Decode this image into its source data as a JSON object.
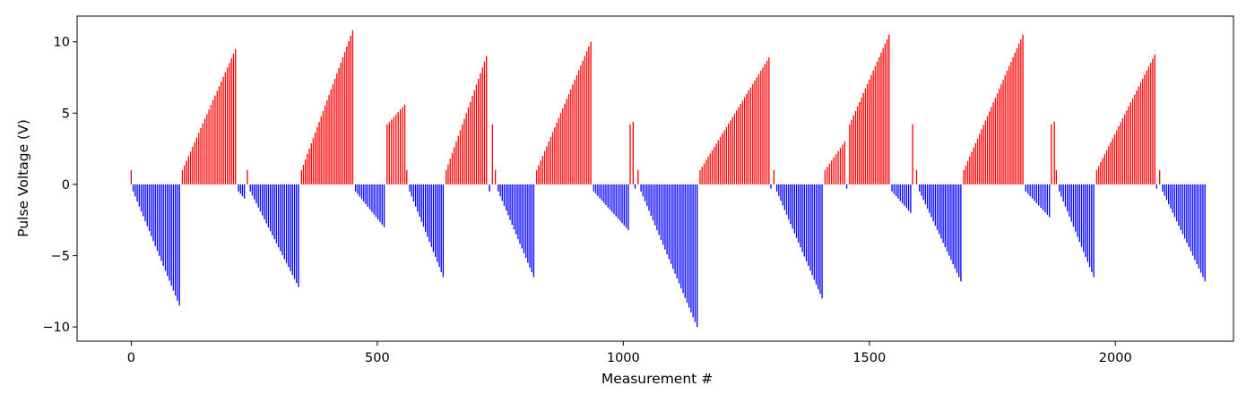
{
  "chart_data": {
    "type": "bar",
    "xlabel": "Measurement #",
    "ylabel": "Pulse Voltage (V)",
    "xlim": [
      -110,
      2240
    ],
    "ylim": [
      -11.0,
      11.8
    ],
    "xticks": [
      0,
      500,
      1000,
      1500,
      2000
    ],
    "yticks": [
      -10,
      -5,
      0,
      5,
      10
    ],
    "ytick_labels": [
      "−10",
      "−5",
      "0",
      "5",
      "10"
    ],
    "grid": false,
    "positive_color": "#ff0000",
    "negative_color": "#0000ff",
    "segments": [
      {
        "x_start": 0,
        "x_end": 3,
        "v_start": 1.0,
        "v_end": 1.0,
        "count": 1
      },
      {
        "x_start": 4,
        "x_end": 98,
        "v_start": -0.5,
        "v_end": -8.5,
        "count": 24
      },
      {
        "x_start": 104,
        "x_end": 212,
        "v_start": 1.0,
        "v_end": 9.5,
        "count": 27
      },
      {
        "x_start": 218,
        "x_end": 230,
        "v_start": -0.5,
        "v_end": -1.0,
        "count": 4
      },
      {
        "x_start": 236,
        "x_end": 238,
        "v_start": 1.0,
        "v_end": 1.0,
        "count": 1
      },
      {
        "x_start": 242,
        "x_end": 340,
        "v_start": -0.5,
        "v_end": -7.2,
        "count": 25
      },
      {
        "x_start": 346,
        "x_end": 450,
        "v_start": 1.0,
        "v_end": 10.8,
        "count": 27
      },
      {
        "x_start": 456,
        "x_end": 514,
        "v_start": -0.5,
        "v_end": -3.0,
        "count": 15
      },
      {
        "x_start": 520,
        "x_end": 556,
        "v_start": 4.2,
        "v_end": 5.6,
        "count": 9
      },
      {
        "x_start": 560,
        "x_end": 562,
        "v_start": 1.0,
        "v_end": 1.0,
        "count": 1
      },
      {
        "x_start": 566,
        "x_end": 634,
        "v_start": -0.5,
        "v_end": -6.5,
        "count": 18
      },
      {
        "x_start": 640,
        "x_end": 722,
        "v_start": 1.0,
        "v_end": 9.0,
        "count": 21
      },
      {
        "x_start": 728,
        "x_end": 730,
        "v_start": -0.5,
        "v_end": -0.5,
        "count": 1
      },
      {
        "x_start": 734,
        "x_end": 736,
        "v_start": 4.2,
        "v_end": 4.2,
        "count": 1
      },
      {
        "x_start": 740,
        "x_end": 742,
        "v_start": 1.0,
        "v_end": 1.0,
        "count": 1
      },
      {
        "x_start": 746,
        "x_end": 818,
        "v_start": -0.5,
        "v_end": -6.5,
        "count": 19
      },
      {
        "x_start": 824,
        "x_end": 934,
        "v_start": 1.0,
        "v_end": 10.0,
        "count": 28
      },
      {
        "x_start": 940,
        "x_end": 1010,
        "v_start": -0.5,
        "v_end": -3.2,
        "count": 18
      },
      {
        "x_start": 1014,
        "x_end": 1020,
        "v_start": 4.2,
        "v_end": 4.4,
        "count": 2
      },
      {
        "x_start": 1024,
        "x_end": 1026,
        "v_start": -0.3,
        "v_end": -0.3,
        "count": 1
      },
      {
        "x_start": 1030,
        "x_end": 1032,
        "v_start": 1.0,
        "v_end": 1.0,
        "count": 1
      },
      {
        "x_start": 1036,
        "x_end": 1150,
        "v_start": -0.5,
        "v_end": -10.0,
        "count": 29
      },
      {
        "x_start": 1156,
        "x_end": 1296,
        "v_start": 1.0,
        "v_end": 8.9,
        "count": 35
      },
      {
        "x_start": 1300,
        "x_end": 1302,
        "v_start": -0.3,
        "v_end": -0.3,
        "count": 1
      },
      {
        "x_start": 1306,
        "x_end": 1308,
        "v_start": 1.0,
        "v_end": 1.0,
        "count": 1
      },
      {
        "x_start": 1312,
        "x_end": 1404,
        "v_start": -0.5,
        "v_end": -8.0,
        "count": 24
      },
      {
        "x_start": 1410,
        "x_end": 1450,
        "v_start": 1.0,
        "v_end": 3.0,
        "count": 10
      },
      {
        "x_start": 1454,
        "x_end": 1456,
        "v_start": -0.3,
        "v_end": -0.3,
        "count": 1
      },
      {
        "x_start": 1460,
        "x_end": 1540,
        "v_start": 4.2,
        "v_end": 10.5,
        "count": 21
      },
      {
        "x_start": 1546,
        "x_end": 1584,
        "v_start": -0.5,
        "v_end": -2.0,
        "count": 10
      },
      {
        "x_start": 1588,
        "x_end": 1590,
        "v_start": 4.2,
        "v_end": 4.2,
        "count": 1
      },
      {
        "x_start": 1596,
        "x_end": 1598,
        "v_start": 1.0,
        "v_end": 1.0,
        "count": 1
      },
      {
        "x_start": 1602,
        "x_end": 1686,
        "v_start": -0.5,
        "v_end": -6.8,
        "count": 22
      },
      {
        "x_start": 1692,
        "x_end": 1812,
        "v_start": 1.0,
        "v_end": 10.5,
        "count": 31
      },
      {
        "x_start": 1818,
        "x_end": 1866,
        "v_start": -0.5,
        "v_end": -2.3,
        "count": 12
      },
      {
        "x_start": 1870,
        "x_end": 1876,
        "v_start": 4.2,
        "v_end": 4.4,
        "count": 2
      },
      {
        "x_start": 1880,
        "x_end": 1882,
        "v_start": 1.0,
        "v_end": 1.0,
        "count": 1
      },
      {
        "x_start": 1886,
        "x_end": 1956,
        "v_start": -0.5,
        "v_end": -6.5,
        "count": 18
      },
      {
        "x_start": 1962,
        "x_end": 2080,
        "v_start": 1.0,
        "v_end": 9.1,
        "count": 30
      },
      {
        "x_start": 2084,
        "x_end": 2086,
        "v_start": -0.3,
        "v_end": -0.3,
        "count": 1
      },
      {
        "x_start": 2090,
        "x_end": 2092,
        "v_start": 1.0,
        "v_end": 1.0,
        "count": 1
      },
      {
        "x_start": 2096,
        "x_end": 2182,
        "v_start": -0.5,
        "v_end": -6.8,
        "count": 22
      }
    ]
  }
}
